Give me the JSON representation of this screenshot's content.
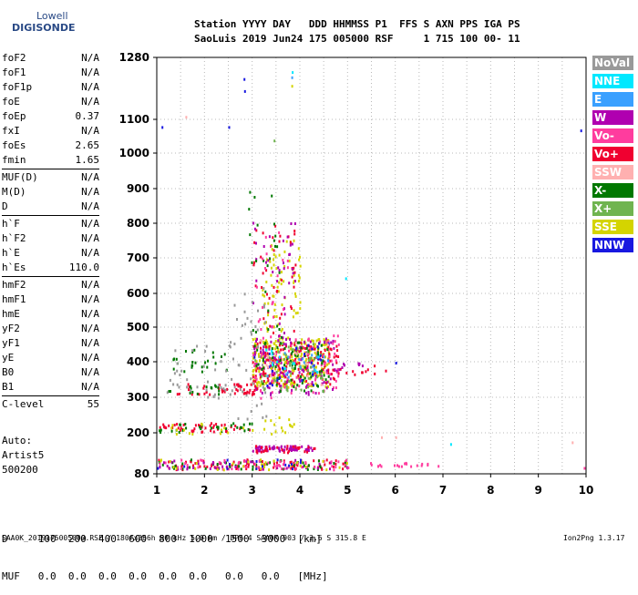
{
  "logo": {
    "line1": "Lowell",
    "line2": "DIGISONDE"
  },
  "header": {
    "line1": "Station YYYY DAY   DDD HHMMSS P1  FFS S AXN PPS IGA PS",
    "line2": "SaoLuis 2019 Jun24 175 005000 RSF     1 715 100 00- 11"
  },
  "params": [
    [
      {
        "k": "foF2",
        "v": "N/A"
      },
      {
        "k": "foF1",
        "v": "N/A"
      },
      {
        "k": "foF1p",
        "v": "N/A"
      },
      {
        "k": "foE",
        "v": "N/A"
      },
      {
        "k": "foEp",
        "v": "0.37"
      },
      {
        "k": "fxI",
        "v": "N/A"
      },
      {
        "k": "foEs",
        "v": "2.65"
      },
      {
        "k": "fmin",
        "v": "1.65"
      }
    ],
    [
      {
        "k": "MUF(D)",
        "v": "N/A"
      },
      {
        "k": "M(D)",
        "v": "N/A"
      },
      {
        "k": "D",
        "v": "N/A"
      }
    ],
    [
      {
        "k": "h`F",
        "v": "N/A"
      },
      {
        "k": "h`F2",
        "v": "N/A"
      },
      {
        "k": "h`E",
        "v": "N/A"
      },
      {
        "k": "h`Es",
        "v": "110.0"
      }
    ],
    [
      {
        "k": "hmF2",
        "v": "N/A"
      },
      {
        "k": "hmF1",
        "v": "N/A"
      },
      {
        "k": "hmE",
        "v": "N/A"
      },
      {
        "k": "yF2",
        "v": "N/A"
      },
      {
        "k": "yF1",
        "v": "N/A"
      },
      {
        "k": "yE",
        "v": "N/A"
      },
      {
        "k": "B0",
        "v": "N/A"
      },
      {
        "k": "B1",
        "v": "N/A"
      }
    ],
    [
      {
        "k": "C-level",
        "v": "55"
      }
    ]
  ],
  "auto": {
    "line1": "Auto:",
    "line2": "Artist5",
    "line3": "500200"
  },
  "legend": [
    {
      "label": "NoVal",
      "color": "#999999"
    },
    {
      "label": "NNE",
      "color": "#00e8ff"
    },
    {
      "label": "E",
      "color": "#3aa0ff"
    },
    {
      "label": "W",
      "color": "#b000b0"
    },
    {
      "label": "Vo-",
      "color": "#ff3c9e"
    },
    {
      "label": "Vo+",
      "color": "#f00030"
    },
    {
      "label": "SSW",
      "color": "#ffb0b0"
    },
    {
      "label": "X-",
      "color": "#007800"
    },
    {
      "label": "X+",
      "color": "#70b450"
    },
    {
      "label": "SSE",
      "color": "#d4d400"
    },
    {
      "label": "NNW",
      "color": "#1818e0"
    }
  ],
  "dmuf": {
    "line1": "D     100  200  400  600  800  1000  1500  3000  [km]",
    "line2": "MUF   0.0  0.0  0.0  0.0  0.0  0.0   0.0   0.0   [MHz]"
  },
  "footer": "SAA0K_2019175005000.RSF / 180fx256h 50 kHz 5.0 km / DPS-4 SAA0K 903 / 2.6 S 315.8 E",
  "version": "Ion2Png 1.3.17",
  "chart_data": {
    "type": "scatter",
    "xlabel": "",
    "ylabel": "",
    "xlim": [
      1,
      10
    ],
    "ylim": [
      80,
      1280
    ],
    "xticks": [
      1,
      2,
      3,
      4,
      5,
      6,
      7,
      8,
      9,
      10
    ],
    "yticks": [
      80,
      200,
      300,
      400,
      500,
      600,
      700,
      800,
      900,
      1000,
      1100,
      1280
    ],
    "y_axis_scale": "nonlinear",
    "grid": true,
    "legend_position": "right",
    "clusters": [
      {
        "series": "SSE",
        "x": [
          3.0,
          4.6
        ],
        "y": [
          330,
          470
        ],
        "n": 260
      },
      {
        "series": "Vo+",
        "x": [
          3.0,
          4.8
        ],
        "y": [
          340,
          460
        ],
        "n": 170
      },
      {
        "series": "Vo-",
        "x": [
          3.0,
          4.8
        ],
        "y": [
          300,
          480
        ],
        "n": 90
      },
      {
        "series": "W",
        "x": [
          3.0,
          4.7
        ],
        "y": [
          310,
          470
        ],
        "n": 100
      },
      {
        "series": "X-",
        "x": [
          3.0,
          4.6
        ],
        "y": [
          320,
          460
        ],
        "n": 70
      },
      {
        "series": "X+",
        "x": [
          3.0,
          4.5
        ],
        "y": [
          320,
          460
        ],
        "n": 60
      },
      {
        "series": "NNW",
        "x": [
          3.0,
          4.6
        ],
        "y": [
          330,
          460
        ],
        "n": 25
      },
      {
        "series": "E",
        "x": [
          3.2,
          4.6
        ],
        "y": [
          360,
          450
        ],
        "n": 20
      },
      {
        "series": "NNE",
        "x": [
          3.2,
          4.4
        ],
        "y": [
          360,
          440
        ],
        "n": 12
      },
      {
        "series": "SSW",
        "x": [
          3.0,
          4.6
        ],
        "y": [
          330,
          470
        ],
        "n": 20
      },
      {
        "series": "SSE",
        "x": [
          3.2,
          4.0
        ],
        "y": [
          470,
          760
        ],
        "n": 70
      },
      {
        "series": "Vo+",
        "x": [
          3.0,
          3.9
        ],
        "y": [
          460,
          800
        ],
        "n": 40
      },
      {
        "series": "W",
        "x": [
          3.0,
          3.9
        ],
        "y": [
          460,
          820
        ],
        "n": 40
      },
      {
        "series": "X-",
        "x": [
          2.9,
          3.6
        ],
        "y": [
          460,
          900
        ],
        "n": 25
      },
      {
        "series": "Vo-",
        "x": [
          3.0,
          3.8
        ],
        "y": [
          460,
          780
        ],
        "n": 20
      },
      {
        "series": "NoVal",
        "x": [
          2.5,
          3.3
        ],
        "y": [
          240,
          620
        ],
        "n": 45
      },
      {
        "series": "Vo+",
        "x": [
          2.6,
          3.1
        ],
        "y": [
          310,
          340
        ],
        "n": 25
      },
      {
        "series": "X-",
        "x": [
          1.3,
          2.6
        ],
        "y": [
          370,
          440
        ],
        "n": 25
      },
      {
        "series": "Vo+",
        "x": [
          1.3,
          2.5
        ],
        "y": [
          310,
          340
        ],
        "n": 20
      },
      {
        "series": "X-",
        "x": [
          1.2,
          2.4
        ],
        "y": [
          310,
          340
        ],
        "n": 15
      },
      {
        "series": "NoVal",
        "x": [
          1.2,
          2.6
        ],
        "y": [
          300,
          450
        ],
        "n": 40
      },
      {
        "series": "SSE",
        "x": [
          3.2,
          3.9
        ],
        "y": [
          200,
          250
        ],
        "n": 15
      },
      {
        "series": "W",
        "x": [
          3.0,
          4.3
        ],
        "y": [
          150,
          165
        ],
        "n": 70
      },
      {
        "series": "Vo+",
        "x": [
          3.0,
          4.3
        ],
        "y": [
          145,
          165
        ],
        "n": 30
      },
      {
        "series": "Vo+",
        "x": [
          1.0,
          3.0
        ],
        "y": [
          205,
          230
        ],
        "n": 45
      },
      {
        "series": "X-",
        "x": [
          1.0,
          3.0
        ],
        "y": [
          205,
          230
        ],
        "n": 30
      },
      {
        "series": "SSE",
        "x": [
          1.0,
          3.0
        ],
        "y": [
          200,
          230
        ],
        "n": 15
      },
      {
        "series": "Vo+",
        "x": [
          1.0,
          5.0
        ],
        "y": [
          95,
          125
        ],
        "n": 90
      },
      {
        "series": "X-",
        "x": [
          1.0,
          5.0
        ],
        "y": [
          95,
          125
        ],
        "n": 50
      },
      {
        "series": "W",
        "x": [
          1.0,
          5.0
        ],
        "y": [
          95,
          125
        ],
        "n": 40
      },
      {
        "series": "Vo-",
        "x": [
          1.0,
          5.0
        ],
        "y": [
          95,
          125
        ],
        "n": 50
      },
      {
        "series": "SSE",
        "x": [
          1.0,
          5.0
        ],
        "y": [
          95,
          125
        ],
        "n": 30
      },
      {
        "series": "NNW",
        "x": [
          1.0,
          4.0
        ],
        "y": [
          95,
          125
        ],
        "n": 15
      },
      {
        "series": "Vo-",
        "x": [
          5.0,
          7.0
        ],
        "y": [
          105,
          115
        ],
        "n": 20
      },
      {
        "series": "Vo+",
        "x": [
          4.6,
          5.8
        ],
        "y": [
          365,
          395
        ],
        "n": 12
      },
      {
        "series": "W",
        "x": [
          4.6,
          5.3
        ],
        "y": [
          375,
          400
        ],
        "n": 10
      }
    ],
    "points": [
      {
        "series": "NNE",
        "x": 3.83,
        "y": 1240
      },
      {
        "series": "E",
        "x": 3.82,
        "y": 1225
      },
      {
        "series": "SSE",
        "x": 3.82,
        "y": 1200
      },
      {
        "series": "NNW",
        "x": 2.82,
        "y": 1220
      },
      {
        "series": "NNW",
        "x": 2.83,
        "y": 1185
      },
      {
        "series": "NNW",
        "x": 2.5,
        "y": 1080
      },
      {
        "series": "NNW",
        "x": 9.88,
        "y": 1070
      },
      {
        "series": "NNW",
        "x": 1.1,
        "y": 1080
      },
      {
        "series": "SSW",
        "x": 1.6,
        "y": 1110
      },
      {
        "series": "X+",
        "x": 3.45,
        "y": 1040
      },
      {
        "series": "SSW",
        "x": 5.7,
        "y": 190
      },
      {
        "series": "SSW",
        "x": 6.0,
        "y": 190
      },
      {
        "series": "NNE",
        "x": 7.15,
        "y": 170
      },
      {
        "series": "NNW",
        "x": 6.0,
        "y": 400
      },
      {
        "series": "Vo-",
        "x": 9.95,
        "y": 100
      },
      {
        "series": "SSW",
        "x": 9.7,
        "y": 175
      },
      {
        "series": "NNE",
        "x": 4.95,
        "y": 645
      }
    ]
  }
}
